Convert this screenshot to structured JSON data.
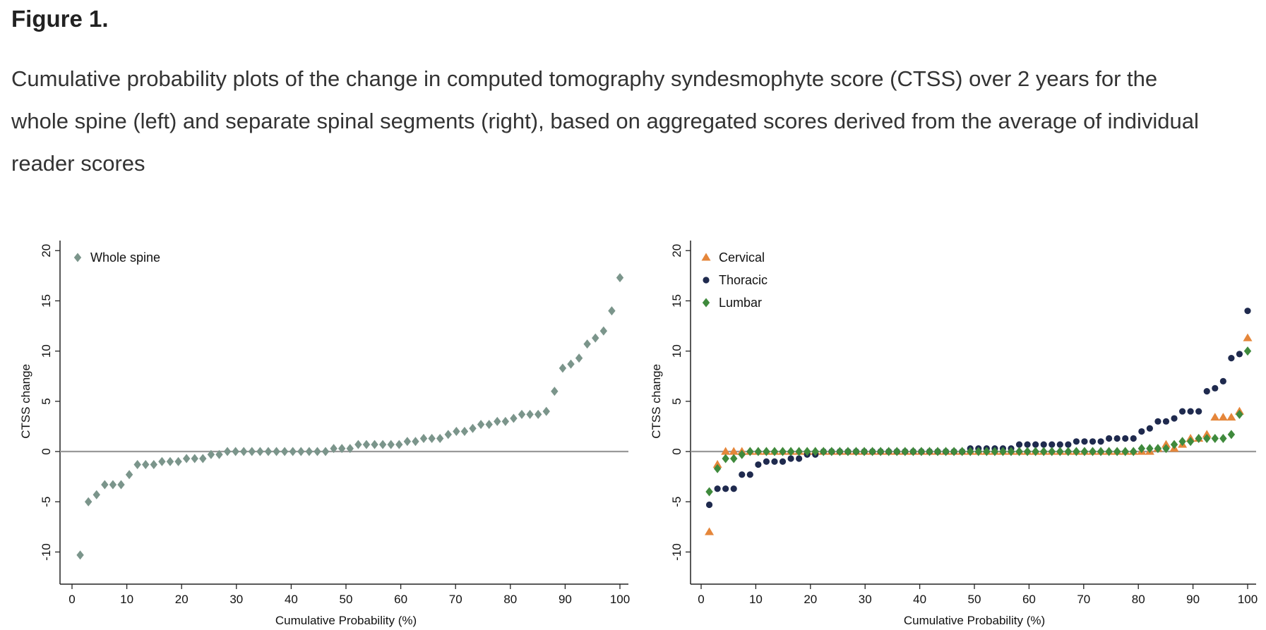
{
  "figure": {
    "title": "Figure 1.",
    "caption": "Cumulative probability plots of the change in computed tomography syndesmophyte score (CTSS) over 2 years for the whole spine (left) and separate spinal segments (right), based on aggregated scores derived from the average of individual reader scores"
  },
  "chart_data": [
    {
      "type": "scatter",
      "title": "",
      "xlabel": "Cumulative Probability (%)",
      "ylabel": "CTSS change",
      "xlim": [
        0,
        100
      ],
      "ylim": [
        -13,
        21
      ],
      "xticks": [
        0,
        10,
        20,
        30,
        40,
        50,
        60,
        70,
        80,
        90,
        100
      ],
      "yticks": [
        -10,
        -5,
        0,
        5,
        10,
        15,
        20
      ],
      "reference_line_y": 0,
      "legend_position": "top-left",
      "n_points": 67,
      "series": [
        {
          "name": "Whole spine",
          "marker": "diamond",
          "color": "#7b958b",
          "values": [
            -10.3,
            -5.0,
            -4.3,
            -3.3,
            -3.3,
            -3.3,
            -2.3,
            -1.3,
            -1.3,
            -1.3,
            -1.0,
            -1.0,
            -1.0,
            -0.7,
            -0.7,
            -0.7,
            -0.3,
            -0.3,
            0,
            0,
            0,
            0,
            0,
            0,
            0,
            0,
            0,
            0,
            0,
            0,
            0,
            0.3,
            0.3,
            0.3,
            0.7,
            0.7,
            0.7,
            0.7,
            0.7,
            0.7,
            1.0,
            1.0,
            1.3,
            1.3,
            1.3,
            1.7,
            2.0,
            2.0,
            2.3,
            2.7,
            2.7,
            3.0,
            3.0,
            3.3,
            3.7,
            3.7,
            3.7,
            4.0,
            6.0,
            8.3,
            8.7,
            9.3,
            10.7,
            11.3,
            12.0,
            14.0,
            17.3
          ]
        }
      ]
    },
    {
      "type": "scatter",
      "title": "",
      "xlabel": "Cumulative Probability (%)",
      "ylabel": "CTSS change",
      "xlim": [
        0,
        100
      ],
      "ylim": [
        -13,
        21
      ],
      "xticks": [
        0,
        10,
        20,
        30,
        40,
        50,
        60,
        70,
        80,
        90,
        100
      ],
      "yticks": [
        -10,
        -5,
        0,
        5,
        10,
        15,
        20
      ],
      "reference_line_y": 0,
      "legend_position": "top-left",
      "n_points": 67,
      "series": [
        {
          "name": "Cervical",
          "marker": "triangle",
          "color": "#e5863a",
          "values": [
            -8.0,
            -1.3,
            0,
            0,
            0,
            0,
            0,
            0,
            0,
            0,
            0,
            0,
            0,
            0,
            0,
            0,
            0,
            0,
            0,
            0,
            0,
            0,
            0,
            0,
            0,
            0,
            0,
            0,
            0,
            0,
            0,
            0,
            0,
            0,
            0,
            0,
            0,
            0,
            0,
            0,
            0,
            0,
            0,
            0,
            0,
            0,
            0,
            0,
            0,
            0,
            0,
            0,
            0,
            0,
            0,
            0.3,
            0.7,
            0.3,
            0.7,
            1.3,
            1.3,
            1.7,
            3.4,
            3.4,
            3.4,
            4.0,
            11.3
          ]
        },
        {
          "name": "Thoracic",
          "marker": "circle",
          "color": "#1f2a4e",
          "values": [
            -5.3,
            -3.7,
            -3.7,
            -3.7,
            -2.3,
            -2.3,
            -1.3,
            -1.0,
            -1.0,
            -1.0,
            -0.7,
            -0.7,
            -0.3,
            -0.3,
            0,
            0,
            0,
            0,
            0,
            0,
            0,
            0,
            0,
            0,
            0,
            0,
            0,
            0,
            0,
            0,
            0,
            0,
            0.3,
            0.3,
            0.3,
            0.3,
            0.3,
            0.3,
            0.7,
            0.7,
            0.7,
            0.7,
            0.7,
            0.7,
            0.7,
            1.0,
            1.0,
            1.0,
            1.0,
            1.3,
            1.3,
            1.3,
            1.3,
            2.0,
            2.3,
            3.0,
            3.0,
            3.3,
            4.0,
            4.0,
            4.0,
            6.0,
            6.3,
            7.0,
            9.3,
            9.7,
            14.0
          ]
        },
        {
          "name": "Lumbar",
          "marker": "diamond",
          "color": "#3f8a3c",
          "values": [
            -4.0,
            -1.7,
            -0.7,
            -0.7,
            -0.3,
            0,
            0,
            0,
            0,
            0,
            0,
            0,
            0,
            0,
            0,
            0,
            0,
            0,
            0,
            0,
            0,
            0,
            0,
            0,
            0,
            0,
            0,
            0,
            0,
            0,
            0,
            0,
            0,
            0,
            0,
            0,
            0,
            0,
            0,
            0,
            0,
            0,
            0,
            0,
            0,
            0,
            0,
            0,
            0,
            0,
            0,
            0,
            0,
            0.3,
            0.3,
            0.3,
            0.3,
            0.7,
            1.0,
            1.0,
            1.3,
            1.3,
            1.3,
            1.3,
            1.7,
            3.7,
            10.0
          ]
        }
      ]
    }
  ]
}
